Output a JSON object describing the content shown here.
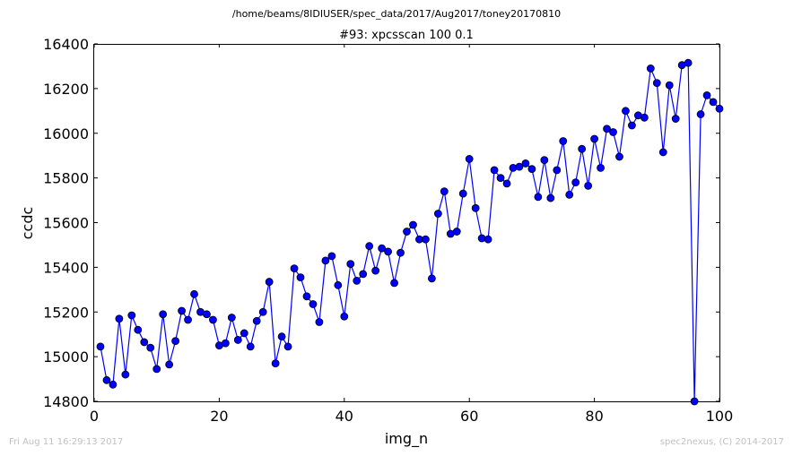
{
  "header": {
    "path": "/home/beams/8IDIUSER/spec_data/2017/Aug2017/toney20170810"
  },
  "footer": {
    "timestamp": "Fri Aug 11 16:29:13 2017",
    "credit": "spec2nexus, (C) 2014-2017"
  },
  "chart_data": {
    "type": "line",
    "title": "#93: xpcsscan 100 0.1",
    "xlabel": "img_n",
    "ylabel": "ccdc",
    "xlim": [
      0,
      100
    ],
    "ylim": [
      14800,
      16400
    ],
    "xticks": [
      0,
      20,
      40,
      60,
      80,
      100
    ],
    "yticks": [
      14800,
      15000,
      15200,
      15400,
      15600,
      15800,
      16000,
      16200,
      16400
    ],
    "grid": false,
    "line_color": "#0000ff",
    "marker": "circle",
    "series": [
      {
        "x": [
          1,
          2,
          3,
          4,
          5,
          6,
          7,
          8,
          9,
          10,
          11,
          12,
          13,
          14,
          15,
          16,
          17,
          18,
          19,
          20,
          21,
          22,
          23,
          24,
          25,
          26,
          27,
          28,
          29,
          30,
          31,
          32,
          33,
          34,
          35,
          36,
          37,
          38,
          39,
          40,
          41,
          42,
          43,
          44,
          45,
          46,
          47,
          48,
          49,
          50,
          51,
          52,
          53,
          54,
          55,
          56,
          57,
          58,
          59,
          60,
          61,
          62,
          63,
          64,
          65,
          66,
          67,
          68,
          69,
          70,
          71,
          72,
          73,
          74,
          75,
          76,
          77,
          78,
          79,
          80,
          81,
          82,
          83,
          84,
          85,
          86,
          87,
          88,
          89,
          90,
          91,
          92,
          93,
          94,
          95,
          96,
          97,
          98,
          99,
          100
        ],
        "values": [
          15045,
          14895,
          14875,
          15170,
          14920,
          15185,
          15120,
          15065,
          15040,
          14945,
          15190,
          14965,
          15070,
          15205,
          15165,
          15280,
          15200,
          15190,
          15165,
          15050,
          15060,
          15175,
          15075,
          15105,
          15045,
          15160,
          15200,
          15335,
          14970,
          15090,
          15045,
          15395,
          15355,
          15270,
          15235,
          15155,
          15430,
          15450,
          15320,
          15180,
          15415,
          15340,
          15370,
          15495,
          15385,
          15485,
          15470,
          15330,
          15465,
          15560,
          15590,
          15525,
          15525,
          15350,
          15640,
          15740,
          15550,
          15560,
          15730,
          15885,
          15665,
          15530,
          15525,
          15835,
          15800,
          15775,
          15845,
          15850,
          15865,
          15840,
          15715,
          15880,
          15710,
          15835,
          15965,
          15725,
          15780,
          15930,
          15765,
          15975,
          15845,
          16020,
          16005,
          15895,
          16100,
          16035,
          16080,
          16070,
          16290,
          16225,
          15915,
          16215,
          16065,
          16305,
          16315,
          14800,
          16085,
          16170,
          16140,
          16110
        ]
      }
    ]
  }
}
